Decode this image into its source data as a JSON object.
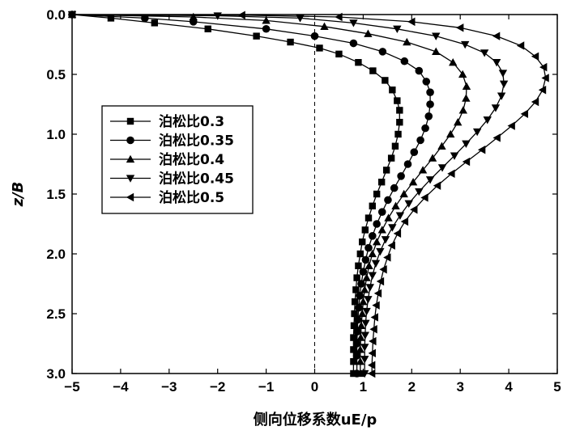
{
  "chart_data": {
    "type": "line",
    "xlabel": "侧向位移系数uE/p",
    "ylabel": "z/B",
    "xlim": [
      -5,
      5
    ],
    "ylim": [
      0,
      3
    ],
    "y_inverted": true,
    "x_ticks": [
      "−5",
      "−4",
      "−3",
      "−2",
      "−1",
      "0",
      "1",
      "2",
      "3",
      "4",
      "5"
    ],
    "y_ticks": [
      "0.0",
      "0.5",
      "1.0",
      "1.5",
      "2.0",
      "2.5",
      "3.0"
    ],
    "reference_line": {
      "x": 0,
      "style": "dashed"
    },
    "legend": {
      "placement": "center-left",
      "entries": [
        "泊松比0.3",
        "泊松比0.35",
        "泊松比0.4",
        "泊松比0.45",
        "泊松比0.5"
      ]
    },
    "series": [
      {
        "name": "泊松比0.3",
        "marker": "square",
        "points": [
          [
            -5.0,
            0.0
          ],
          [
            -4.2,
            0.03
          ],
          [
            -3.3,
            0.07
          ],
          [
            -2.2,
            0.12
          ],
          [
            -1.2,
            0.18
          ],
          [
            -0.5,
            0.23
          ],
          [
            0.1,
            0.28
          ],
          [
            0.5,
            0.33
          ],
          [
            0.9,
            0.4
          ],
          [
            1.2,
            0.47
          ],
          [
            1.45,
            0.55
          ],
          [
            1.6,
            0.63
          ],
          [
            1.7,
            0.72
          ],
          [
            1.75,
            0.8
          ],
          [
            1.75,
            0.9
          ],
          [
            1.72,
            1.0
          ],
          [
            1.66,
            1.1
          ],
          [
            1.58,
            1.2
          ],
          [
            1.48,
            1.3
          ],
          [
            1.38,
            1.4
          ],
          [
            1.28,
            1.5
          ],
          [
            1.19,
            1.6
          ],
          [
            1.11,
            1.7
          ],
          [
            1.04,
            1.8
          ],
          [
            0.98,
            1.9
          ],
          [
            0.94,
            2.0
          ],
          [
            0.9,
            2.1
          ],
          [
            0.87,
            2.2
          ],
          [
            0.85,
            2.3
          ],
          [
            0.83,
            2.4
          ],
          [
            0.82,
            2.5
          ],
          [
            0.81,
            2.6
          ],
          [
            0.8,
            2.7
          ],
          [
            0.8,
            2.8
          ],
          [
            0.8,
            2.9
          ],
          [
            0.8,
            3.0
          ]
        ]
      },
      {
        "name": "泊松比0.35",
        "marker": "circle",
        "points": [
          [
            -5.0,
            0.0
          ],
          [
            -3.5,
            0.03
          ],
          [
            -2.5,
            0.06
          ],
          [
            -1.0,
            0.12
          ],
          [
            0.0,
            0.18
          ],
          [
            0.8,
            0.24
          ],
          [
            1.4,
            0.31
          ],
          [
            1.85,
            0.39
          ],
          [
            2.15,
            0.47
          ],
          [
            2.3,
            0.56
          ],
          [
            2.38,
            0.65
          ],
          [
            2.38,
            0.75
          ],
          [
            2.35,
            0.85
          ],
          [
            2.28,
            0.95
          ],
          [
            2.18,
            1.05
          ],
          [
            2.05,
            1.15
          ],
          [
            1.92,
            1.25
          ],
          [
            1.78,
            1.35
          ],
          [
            1.64,
            1.45
          ],
          [
            1.51,
            1.55
          ],
          [
            1.39,
            1.65
          ],
          [
            1.28,
            1.75
          ],
          [
            1.19,
            1.85
          ],
          [
            1.11,
            1.95
          ],
          [
            1.05,
            2.05
          ],
          [
            1.0,
            2.15
          ],
          [
            0.96,
            2.25
          ],
          [
            0.93,
            2.35
          ],
          [
            0.91,
            2.45
          ],
          [
            0.89,
            2.55
          ],
          [
            0.88,
            2.65
          ],
          [
            0.87,
            2.75
          ],
          [
            0.87,
            2.85
          ],
          [
            0.87,
            3.0
          ]
        ]
      },
      {
        "name": "泊松比0.4",
        "marker": "triangle-up",
        "points": [
          [
            -5.0,
            0.0
          ],
          [
            -2.5,
            0.02
          ],
          [
            -1.0,
            0.05
          ],
          [
            0.2,
            0.1
          ],
          [
            1.1,
            0.16
          ],
          [
            1.9,
            0.23
          ],
          [
            2.5,
            0.31
          ],
          [
            2.85,
            0.4
          ],
          [
            3.05,
            0.5
          ],
          [
            3.13,
            0.6
          ],
          [
            3.12,
            0.7
          ],
          [
            3.06,
            0.8
          ],
          [
            2.95,
            0.9
          ],
          [
            2.8,
            1.0
          ],
          [
            2.62,
            1.1
          ],
          [
            2.43,
            1.2
          ],
          [
            2.23,
            1.3
          ],
          [
            2.03,
            1.4
          ],
          [
            1.84,
            1.5
          ],
          [
            1.67,
            1.6
          ],
          [
            1.52,
            1.7
          ],
          [
            1.39,
            1.8
          ],
          [
            1.28,
            1.9
          ],
          [
            1.19,
            2.0
          ],
          [
            1.12,
            2.1
          ],
          [
            1.07,
            2.2
          ],
          [
            1.03,
            2.3
          ],
          [
            1.0,
            2.4
          ],
          [
            0.98,
            2.5
          ],
          [
            0.96,
            2.6
          ],
          [
            0.95,
            2.7
          ],
          [
            0.94,
            2.8
          ],
          [
            0.94,
            2.9
          ],
          [
            0.94,
            3.0
          ]
        ]
      },
      {
        "name": "泊松比0.45",
        "marker": "triangle-down",
        "points": [
          [
            -5.0,
            0.0
          ],
          [
            -2.0,
            0.01
          ],
          [
            -0.3,
            0.03
          ],
          [
            0.8,
            0.07
          ],
          [
            1.7,
            0.12
          ],
          [
            2.5,
            0.18
          ],
          [
            3.1,
            0.25
          ],
          [
            3.5,
            0.32
          ],
          [
            3.75,
            0.4
          ],
          [
            3.88,
            0.49
          ],
          [
            3.9,
            0.58
          ],
          [
            3.85,
            0.68
          ],
          [
            3.73,
            0.78
          ],
          [
            3.56,
            0.88
          ],
          [
            3.35,
            0.98
          ],
          [
            3.12,
            1.08
          ],
          [
            2.88,
            1.18
          ],
          [
            2.63,
            1.28
          ],
          [
            2.38,
            1.38
          ],
          [
            2.15,
            1.48
          ],
          [
            1.94,
            1.58
          ],
          [
            1.76,
            1.68
          ],
          [
            1.6,
            1.78
          ],
          [
            1.46,
            1.88
          ],
          [
            1.35,
            1.98
          ],
          [
            1.26,
            2.08
          ],
          [
            1.19,
            2.18
          ],
          [
            1.14,
            2.28
          ],
          [
            1.1,
            2.38
          ],
          [
            1.07,
            2.48
          ],
          [
            1.05,
            2.58
          ],
          [
            1.04,
            2.68
          ],
          [
            1.03,
            2.78
          ],
          [
            1.03,
            2.88
          ],
          [
            1.03,
            3.0
          ]
        ]
      },
      {
        "name": "泊松比0.5",
        "marker": "triangle-left",
        "points": [
          [
            -5.0,
            0.0
          ],
          [
            -1.5,
            0.005
          ],
          [
            0.5,
            0.02
          ],
          [
            2.0,
            0.06
          ],
          [
            3.0,
            0.11
          ],
          [
            3.75,
            0.18
          ],
          [
            4.25,
            0.26
          ],
          [
            4.55,
            0.35
          ],
          [
            4.72,
            0.44
          ],
          [
            4.76,
            0.53
          ],
          [
            4.7,
            0.63
          ],
          [
            4.55,
            0.73
          ],
          [
            4.33,
            0.83
          ],
          [
            4.06,
            0.93
          ],
          [
            3.76,
            1.03
          ],
          [
            3.45,
            1.13
          ],
          [
            3.13,
            1.23
          ],
          [
            2.82,
            1.33
          ],
          [
            2.53,
            1.43
          ],
          [
            2.27,
            1.53
          ],
          [
            2.05,
            1.63
          ],
          [
            1.86,
            1.73
          ],
          [
            1.71,
            1.83
          ],
          [
            1.59,
            1.93
          ],
          [
            1.5,
            2.03
          ],
          [
            1.42,
            2.13
          ],
          [
            1.36,
            2.23
          ],
          [
            1.31,
            2.33
          ],
          [
            1.27,
            2.43
          ],
          [
            1.24,
            2.53
          ],
          [
            1.22,
            2.63
          ],
          [
            1.2,
            2.73
          ],
          [
            1.19,
            2.83
          ],
          [
            1.18,
            2.93
          ],
          [
            1.18,
            3.0
          ]
        ]
      }
    ]
  }
}
